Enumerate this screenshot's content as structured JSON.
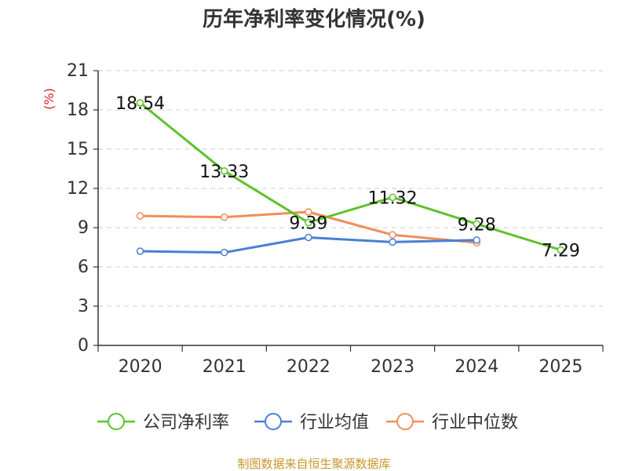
{
  "chart_data": {
    "type": "line",
    "title": "历年净利率变化情况(%)",
    "ylabel": "(%)",
    "xlabel": "",
    "ylim": [
      0,
      21
    ],
    "yticks": [
      0,
      3,
      6,
      9,
      12,
      15,
      18,
      21
    ],
    "categories": [
      "2020",
      "2021",
      "2022",
      "2023",
      "2024",
      "2025"
    ],
    "grid": true,
    "legend_position": "bottom",
    "series": [
      {
        "name": "公司净利率",
        "color": "#5cc22a",
        "values": [
          18.54,
          13.33,
          9.39,
          11.32,
          9.28,
          7.29
        ],
        "labels": [
          "18.54",
          "13.33",
          "9.39",
          "11.32",
          "9.28",
          "7.29"
        ]
      },
      {
        "name": "行业均值",
        "color": "#4a7fd6",
        "values": [
          7.2,
          7.1,
          8.25,
          7.9,
          8.05,
          null
        ]
      },
      {
        "name": "行业中位数",
        "color": "#f28c5a",
        "values": [
          9.9,
          9.8,
          10.2,
          8.45,
          7.85,
          null
        ]
      }
    ],
    "source": "制图数据来自恒生聚源数据库",
    "unit_color": "#d22222",
    "source_color": "#c8962a",
    "axis_color": "#333333",
    "grid_color": "#cccccc"
  }
}
